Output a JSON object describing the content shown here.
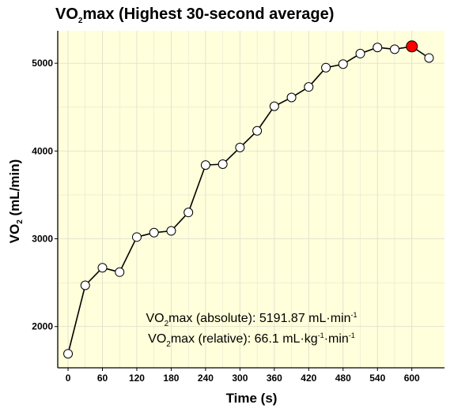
{
  "chart_data": {
    "type": "line",
    "title": {
      "main": "VO",
      "sub": "2",
      "rest": "max (Highest 30-second average)"
    },
    "xlabel": "Time (s)",
    "ylabel": {
      "main": "VO",
      "sub": "2",
      "rest": " (mL/min)"
    },
    "xlim": [
      -18,
      657
    ],
    "ylim": [
      1530,
      5370
    ],
    "x_ticks": [
      0,
      60,
      120,
      180,
      240,
      300,
      360,
      420,
      480,
      540,
      600
    ],
    "y_ticks": [
      2000,
      3000,
      4000,
      5000
    ],
    "grid": true,
    "background_color": "#ffffdb",
    "grid_color": "#e0e0d0",
    "line_color": "#000000",
    "point_fill": "#ffffff",
    "highlight_fill": "#ff0000",
    "highlight_index": 20,
    "x": [
      0,
      30,
      60,
      90,
      120,
      150,
      180,
      210,
      240,
      270,
      300,
      330,
      360,
      390,
      420,
      450,
      480,
      510,
      540,
      570,
      600,
      630
    ],
    "y": [
      1690,
      2470,
      2670,
      2620,
      3020,
      3070,
      3090,
      3300,
      3840,
      3850,
      4040,
      4230,
      4510,
      4610,
      4730,
      4950,
      4990,
      5110,
      5180,
      5160,
      5191.87,
      5060
    ],
    "annotations": [
      {
        "parts": [
          {
            "t": "VO"
          },
          {
            "t": "2",
            "s": "sub"
          },
          {
            "t": "max (absolute): 5191.87 mL·min"
          },
          {
            "t": "-1",
            "s": "sup"
          }
        ]
      },
      {
        "parts": [
          {
            "t": "VO"
          },
          {
            "t": "2",
            "s": "sub"
          },
          {
            "t": "max (relative): 66.1 mL·kg"
          },
          {
            "t": "-1",
            "s": "sup"
          },
          {
            "t": "·min"
          },
          {
            "t": "-1",
            "s": "sup"
          }
        ]
      }
    ]
  }
}
